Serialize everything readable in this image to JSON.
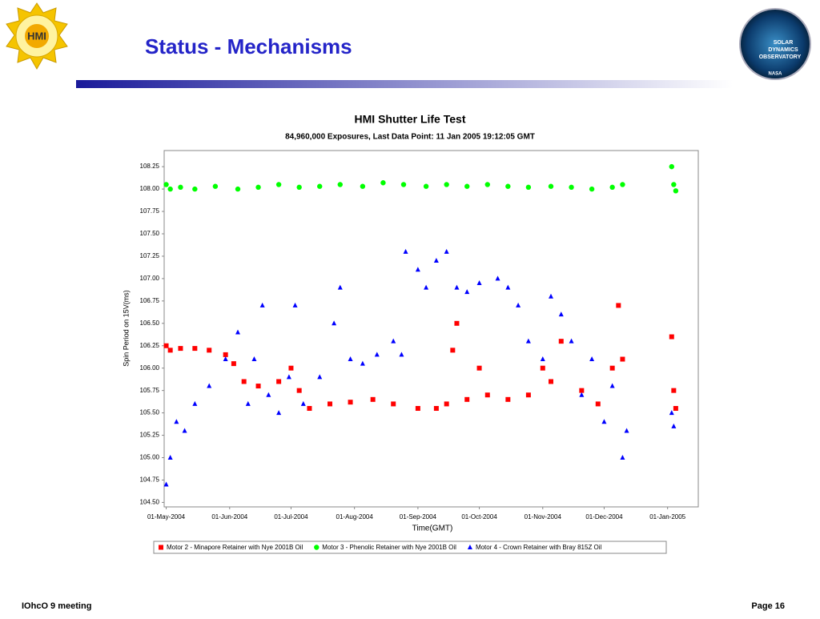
{
  "slide": {
    "title": "Status - Mechanisms",
    "footer_left": "IOhcO 9 meeting",
    "footer_right": "Page 16",
    "logo_left": "HMI",
    "logo_right": [
      "SOLAR",
      "DYNAMICS",
      "OBSERVATORY",
      "NASA"
    ]
  },
  "chart_data": {
    "type": "scatter",
    "title": "HMI Shutter Life Test",
    "subtitle": "84,960,000 Exposures, Last Data Point: 11 Jan 2005 19:12:05 GMT",
    "x_label": "Time(GMT)",
    "y_label": "Spin Period on 15V(ms)",
    "xlim": [
      "2004-04-30",
      "2005-01-16"
    ],
    "xticks": [
      {
        "value": "2004-05-01",
        "label": "01-May-2004"
      },
      {
        "value": "2004-06-01",
        "label": "01-Jun-2004"
      },
      {
        "value": "2004-07-01",
        "label": "01-Jul-2004"
      },
      {
        "value": "2004-08-01",
        "label": "01-Aug-2004"
      },
      {
        "value": "2004-09-01",
        "label": "01-Sep-2004"
      },
      {
        "value": "2004-10-01",
        "label": "01-Oct-2004"
      },
      {
        "value": "2004-11-01",
        "label": "01-Nov-2004"
      },
      {
        "value": "2004-12-01",
        "label": "01-Dec-2004"
      },
      {
        "value": "2005-01-01",
        "label": "01-Jan-2005"
      }
    ],
    "ylim": [
      104.45,
      108.43
    ],
    "yticks": [
      {
        "value": 104.5,
        "label": "104.50"
      },
      104.75,
      {
        "value": 105,
        "label": "105.00"
      },
      105.25,
      {
        "value": 105.5,
        "label": "105.50"
      },
      105.75,
      {
        "value": 106,
        "label": "106.00"
      },
      106.25,
      {
        "value": 106.5,
        "label": "106.50"
      },
      106.75,
      {
        "value": 107,
        "label": "107.00"
      },
      107.25,
      {
        "value": 107.5,
        "label": "107.50"
      },
      107.75,
      {
        "value": 108,
        "label": "108.00"
      },
      108.25
    ],
    "grid": false,
    "legend": "bottom",
    "series": [
      {
        "name": "Motor 2 - Minapore Retainer with Nye 2001B Oil",
        "color": "#ff0000",
        "marker": "square",
        "x": [
          "2004-05-01",
          "2004-05-03",
          "2004-05-08",
          "2004-05-15",
          "2004-05-22",
          "2004-05-30",
          "2004-06-03",
          "2004-06-08",
          "2004-06-15",
          "2004-06-25",
          "2004-07-01",
          "2004-07-05",
          "2004-07-10",
          "2004-07-20",
          "2004-07-30",
          "2004-08-10",
          "2004-08-20",
          "2004-09-01",
          "2004-09-10",
          "2004-09-15",
          "2004-09-18",
          "2004-09-20",
          "2004-09-25",
          "2004-10-01",
          "2004-10-05",
          "2004-10-15",
          "2004-10-25",
          "2004-11-01",
          "2004-11-05",
          "2004-11-10",
          "2004-11-20",
          "2004-11-28",
          "2004-12-05",
          "2004-12-08",
          "2004-12-10",
          "2005-01-03",
          "2005-01-04",
          "2005-01-05"
        ],
        "values": [
          106.25,
          106.2,
          106.22,
          106.22,
          106.2,
          106.15,
          106.05,
          105.85,
          105.8,
          105.85,
          106.0,
          105.75,
          105.55,
          105.6,
          105.62,
          105.65,
          105.6,
          105.55,
          105.55,
          105.6,
          106.2,
          106.5,
          105.65,
          106.0,
          105.7,
          105.65,
          105.7,
          106.0,
          105.85,
          106.3,
          105.75,
          105.6,
          106.0,
          106.7,
          106.1,
          106.35,
          105.75,
          105.55
        ]
      },
      {
        "name": "Motor 3 - Phenolic Retainer with Nye 2001B Oil",
        "color": "#00ff00",
        "marker": "circle",
        "x": [
          "2004-05-01",
          "2004-05-03",
          "2004-05-08",
          "2004-05-15",
          "2004-05-25",
          "2004-06-05",
          "2004-06-15",
          "2004-06-25",
          "2004-07-05",
          "2004-07-15",
          "2004-07-25",
          "2004-08-05",
          "2004-08-15",
          "2004-08-25",
          "2004-09-05",
          "2004-09-15",
          "2004-09-25",
          "2004-10-05",
          "2004-10-15",
          "2004-10-25",
          "2004-11-05",
          "2004-11-15",
          "2004-11-25",
          "2004-12-05",
          "2004-12-10",
          "2005-01-03",
          "2005-01-04",
          "2005-01-05"
        ],
        "values": [
          108.05,
          108.0,
          108.02,
          108.0,
          108.03,
          108.0,
          108.02,
          108.05,
          108.02,
          108.03,
          108.05,
          108.03,
          108.07,
          108.05,
          108.03,
          108.05,
          108.03,
          108.05,
          108.03,
          108.02,
          108.03,
          108.02,
          108.0,
          108.02,
          108.05,
          108.25,
          108.05,
          107.98
        ]
      },
      {
        "name": "Motor 4 - Crown Retainer with Bray 815Z Oil",
        "color": "#0000ff",
        "marker": "triangle",
        "x": [
          "2004-05-01",
          "2004-05-03",
          "2004-05-06",
          "2004-05-10",
          "2004-05-15",
          "2004-05-22",
          "2004-05-30",
          "2004-06-05",
          "2004-06-10",
          "2004-06-13",
          "2004-06-17",
          "2004-06-20",
          "2004-06-25",
          "2004-06-30",
          "2004-07-03",
          "2004-07-07",
          "2004-07-15",
          "2004-07-22",
          "2004-07-25",
          "2004-07-30",
          "2004-08-05",
          "2004-08-12",
          "2004-08-20",
          "2004-08-24",
          "2004-08-26",
          "2004-09-01",
          "2004-09-05",
          "2004-09-10",
          "2004-09-15",
          "2004-09-20",
          "2004-09-25",
          "2004-10-01",
          "2004-10-10",
          "2004-10-15",
          "2004-10-20",
          "2004-10-25",
          "2004-11-01",
          "2004-11-05",
          "2004-11-10",
          "2004-11-15",
          "2004-11-20",
          "2004-11-25",
          "2004-12-01",
          "2004-12-05",
          "2004-12-10",
          "2004-12-12",
          "2005-01-03",
          "2005-01-04"
        ],
        "values": [
          104.7,
          105.0,
          105.4,
          105.3,
          105.6,
          105.8,
          106.1,
          106.4,
          105.6,
          106.1,
          106.7,
          105.7,
          105.5,
          105.9,
          106.7,
          105.6,
          105.9,
          106.5,
          106.9,
          106.1,
          106.05,
          106.15,
          106.3,
          106.15,
          107.3,
          107.1,
          106.9,
          107.2,
          107.3,
          106.9,
          106.85,
          106.95,
          107.0,
          106.9,
          106.7,
          106.3,
          106.1,
          106.8,
          106.6,
          106.3,
          105.7,
          106.1,
          105.4,
          105.8,
          105.0,
          105.3,
          105.5,
          105.35
        ]
      }
    ]
  }
}
